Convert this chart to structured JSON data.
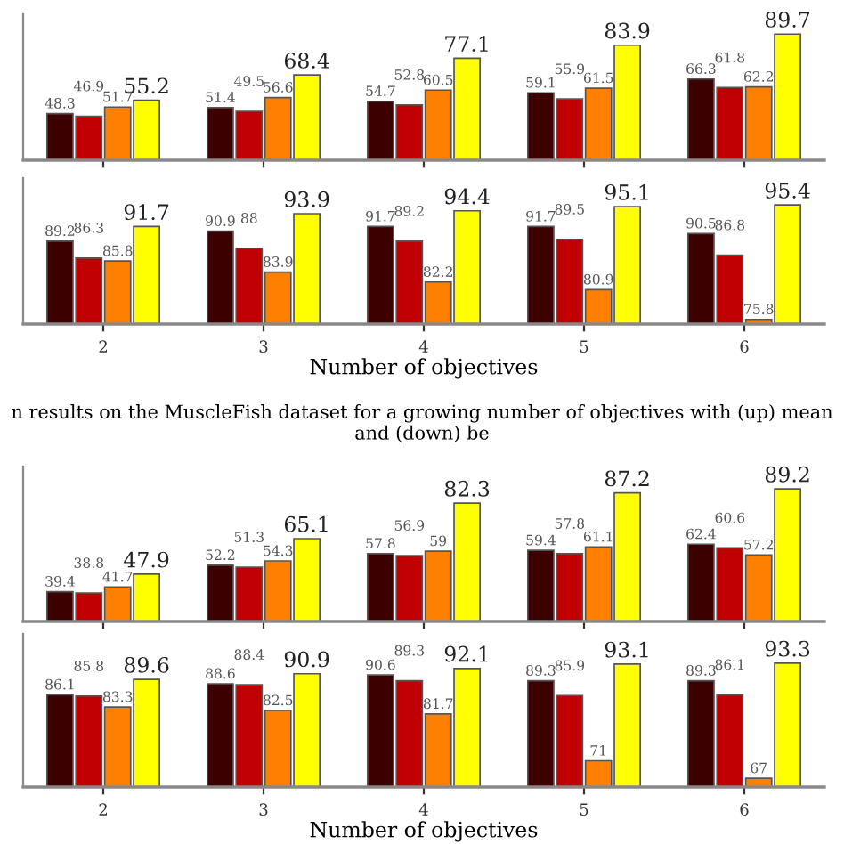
{
  "chart_data": [
    {
      "type": "bar",
      "categories": [
        "2",
        "3",
        "4",
        "5",
        "6"
      ],
      "ylim": [
        24,
        100
      ],
      "data_labels": true,
      "tick_labels": false,
      "grid": false,
      "legend": false,
      "series": [
        {
          "color": "#3d0000",
          "values": [
            48.3,
            51.4,
            54.7,
            59.1,
            66.3
          ]
        },
        {
          "color": "#c00000",
          "values": [
            46.9,
            49.5,
            52.8,
            55.9,
            61.8
          ]
        },
        {
          "color": "#ff8000",
          "values": [
            51.7,
            56.6,
            60.5,
            61.5,
            62.2
          ]
        },
        {
          "color": "#ffff00",
          "values": [
            55.2,
            68.4,
            77.1,
            83.9,
            89.7
          ]
        }
      ]
    },
    {
      "type": "bar",
      "categories": [
        "2",
        "3",
        "4",
        "5",
        "6"
      ],
      "ylim": [
        75,
        100
      ],
      "data_labels": true,
      "tick_labels": "x",
      "grid": false,
      "legend": false,
      "xlabel": "Number of objectives",
      "annotations": [
        "n results on the MuscleFish dataset for a growing number of objectives with (up) mean and (down) be"
      ],
      "series": [
        {
          "color": "#3d0000",
          "values": [
            89.2,
            90.9,
            91.7,
            91.7,
            90.5
          ]
        },
        {
          "color": "#c00000",
          "values": [
            86.3,
            88,
            89.2,
            89.5,
            86.8
          ]
        },
        {
          "color": "#ff8000",
          "values": [
            85.8,
            83.9,
            82.2,
            80.9,
            75.8
          ]
        },
        {
          "color": "#ffff00",
          "values": [
            91.7,
            93.9,
            94.4,
            95.1,
            95.4
          ]
        }
      ]
    },
    {
      "type": "bar",
      "categories": [
        "2",
        "3",
        "4",
        "5",
        "6"
      ],
      "ylim": [
        25,
        100
      ],
      "data_labels": true,
      "tick_labels": false,
      "grid": false,
      "legend": false,
      "series": [
        {
          "color": "#3d0000",
          "values": [
            39.4,
            52.2,
            57.8,
            59.4,
            62.4
          ]
        },
        {
          "color": "#c00000",
          "values": [
            38.8,
            51.3,
            56.9,
            57.8,
            60.6
          ]
        },
        {
          "color": "#ff8000",
          "values": [
            41.7,
            54.3,
            59,
            61.1,
            57.2
          ]
        },
        {
          "color": "#ffff00",
          "values": [
            47.9,
            65.1,
            82.3,
            87.2,
            89.2
          ]
        }
      ]
    },
    {
      "type": "bar",
      "categories": [
        "2",
        "3",
        "4",
        "5",
        "6"
      ],
      "ylim": [
        65,
        100
      ],
      "data_labels": true,
      "tick_labels": "x",
      "grid": false,
      "legend": false,
      "xlabel": "Number of objectives",
      "series": [
        {
          "color": "#3d0000",
          "values": [
            86.1,
            88.6,
            90.6,
            89.3,
            89.3
          ]
        },
        {
          "color": "#c00000",
          "values": [
            85.8,
            88.4,
            89.3,
            85.9,
            86.1
          ]
        },
        {
          "color": "#ff8000",
          "values": [
            83.3,
            82.5,
            81.7,
            71,
            67
          ]
        },
        {
          "color": "#ffff00",
          "values": [
            89.6,
            90.9,
            92.1,
            93.1,
            93.3
          ]
        }
      ]
    }
  ]
}
